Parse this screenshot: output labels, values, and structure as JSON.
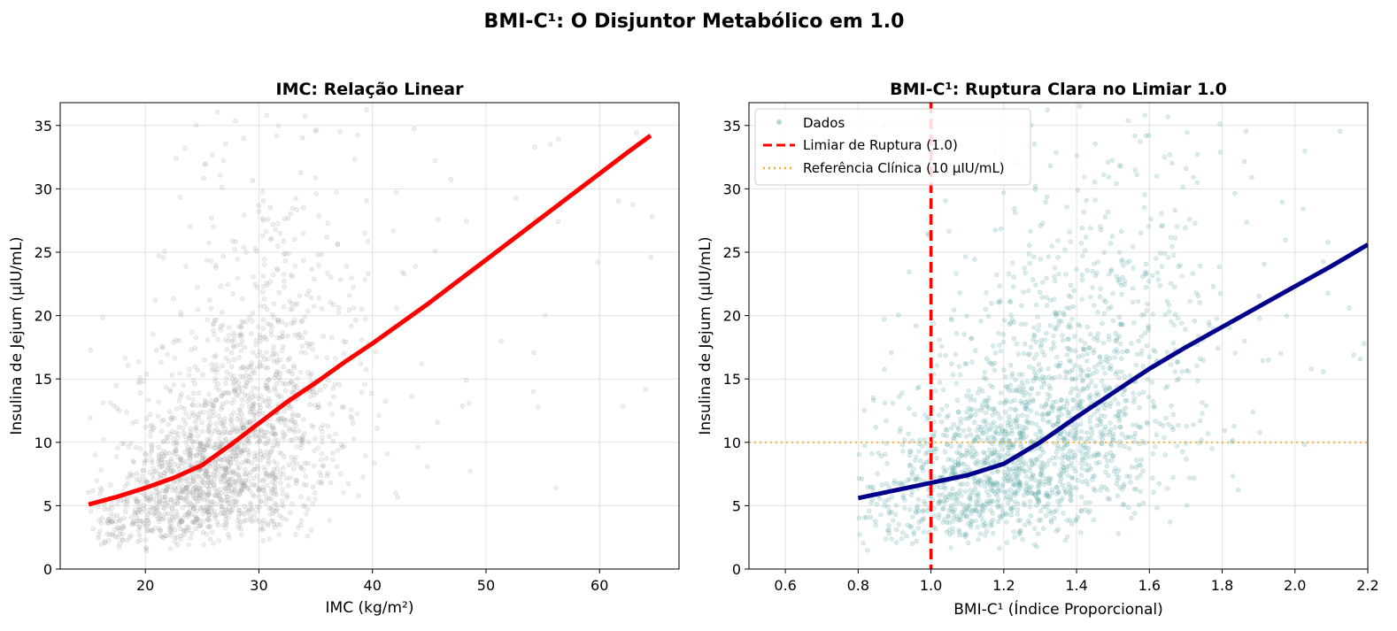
{
  "suptitle": "BMI-C¹: O Disjuntor Metabólico em 1.0",
  "chart_data": [
    {
      "type": "scatter",
      "title": "IMC: Relação Linear",
      "xlabel": "IMC (kg/m²)",
      "ylabel": "Insulina de Jejum (μIU/mL)",
      "xlim": [
        12.5,
        67
      ],
      "ylim": [
        0,
        36.8
      ],
      "xticks": [
        20,
        30,
        40,
        50,
        60
      ],
      "yticks": [
        0,
        5,
        10,
        15,
        20,
        25,
        30,
        35
      ],
      "grid": true,
      "scatter_color": "#999999",
      "scatter": {
        "approx_points": 2000,
        "x_center": 27,
        "x_spread": 5.5,
        "x_min": 15,
        "x_max": 65,
        "y_min": 1,
        "y_max": 36.8
      },
      "series": [
        {
          "type": "line",
          "color": "#ff0000",
          "x": [
            15,
            17.5,
            20,
            22.5,
            25,
            27.5,
            30,
            32.5,
            35,
            37.5,
            40,
            42.5,
            45,
            47.5,
            50,
            52.5,
            55,
            57.5,
            60,
            62.5,
            64.5
          ],
          "y": [
            5.1,
            5.7,
            6.4,
            7.2,
            8.2,
            9.8,
            11.5,
            13.2,
            14.7,
            16.3,
            17.8,
            19.4,
            21.0,
            22.7,
            24.4,
            26.1,
            27.8,
            29.5,
            31.2,
            32.9,
            34.2
          ]
        }
      ]
    },
    {
      "type": "scatter",
      "title": "BMI-C¹: Ruptura Clara no Limiar 1.0",
      "xlabel": "BMI-C¹ (Índice Proporcional)",
      "ylabel": "Insulina de Jejum (μIU/mL)",
      "xlim": [
        0.5,
        2.2
      ],
      "ylim": [
        0,
        36.8
      ],
      "xticks": [
        0.6,
        0.8,
        1.0,
        1.2,
        1.4,
        1.6,
        1.8,
        2.0,
        2.2
      ],
      "xtick_labels": [
        "0.6",
        "0.8",
        "1.0",
        "1.2",
        "1.4",
        "1.6",
        "1.8",
        "2.0",
        "2.2"
      ],
      "yticks": [
        0,
        5,
        10,
        15,
        20,
        25,
        30,
        35
      ],
      "grid": true,
      "legend_position": "upper left",
      "scatter_color": "#5fa8a8",
      "scatter": {
        "approx_points": 2000,
        "x_center": 1.3,
        "x_spread": 0.22,
        "x_min": 0.8,
        "x_max": 2.2,
        "y_min": 1,
        "y_max": 36.8
      },
      "series": [
        {
          "name": "Dados",
          "type": "scatter",
          "color": "#5fa8a8"
        },
        {
          "name": "Limiar de Ruptura (1.0)",
          "type": "vline",
          "x": 1.0,
          "color": "#ff0000",
          "style": "dashed"
        },
        {
          "name": "Referência Clínica (10 μIU/mL)",
          "type": "hline",
          "y": 10,
          "color": "#f0b030",
          "style": "dotted"
        },
        {
          "type": "line",
          "color": "#00008b",
          "x": [
            0.8,
            0.9,
            1.0,
            1.1,
            1.2,
            1.3,
            1.4,
            1.5,
            1.6,
            1.7,
            1.8,
            1.9,
            2.0,
            2.1,
            2.2
          ],
          "y": [
            5.6,
            6.2,
            6.8,
            7.4,
            8.3,
            10.0,
            12.0,
            13.9,
            15.8,
            17.5,
            19.1,
            20.7,
            22.3,
            23.9,
            25.6
          ]
        }
      ]
    }
  ]
}
